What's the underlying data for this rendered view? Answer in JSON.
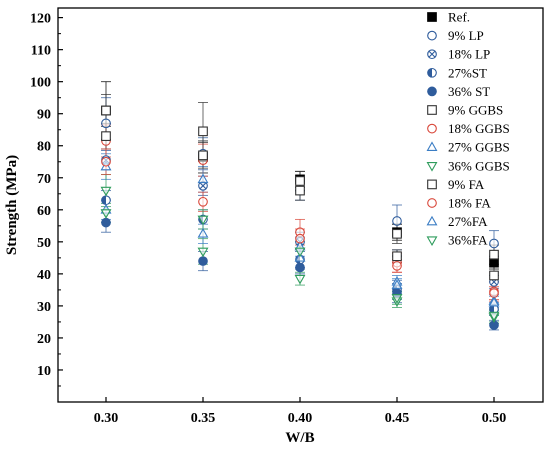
{
  "chart_data": {
    "type": "scatter",
    "xlabel": "W/B",
    "ylabel": "Strength (MPa)",
    "x_categories": [
      "0.30",
      "0.35",
      "0.40",
      "0.45",
      "0.50"
    ],
    "yticks": [
      "10",
      "20",
      "30",
      "40",
      "50",
      "60",
      "70",
      "80",
      "90",
      "100",
      "110",
      "120"
    ],
    "ylim": [
      0,
      123
    ],
    "grid": false,
    "legend_position": "top-right",
    "error_bars": true,
    "series": [
      {
        "name": "Ref.",
        "marker": "square-filled",
        "color": "#000000",
        "values": [
          91,
          76.5,
          69.5,
          53,
          43.5
        ],
        "errors": [
          9,
          5,
          2.5,
          2.5,
          2
        ]
      },
      {
        "name": "9% LP",
        "marker": "circle-open",
        "color": "#2f5c9c",
        "values": [
          87,
          77.5,
          66,
          56.5,
          49.5
        ],
        "errors": [
          8,
          5,
          3,
          5,
          4
        ]
      },
      {
        "name": "18% LP",
        "marker": "circle-x",
        "color": "#2f5c9c",
        "values": [
          75.5,
          67.5,
          50,
          45.5,
          37.5
        ],
        "errors": [
          3,
          3,
          3,
          2,
          2
        ]
      },
      {
        "name": "27%ST",
        "marker": "circle-half",
        "color": "#2f5c9c",
        "values": [
          63,
          57,
          44.5,
          35,
          29
        ],
        "errors": [
          3,
          3,
          3,
          3,
          2
        ]
      },
      {
        "name": "36% ST",
        "marker": "circle-filled",
        "color": "#2f5c9c",
        "values": [
          56,
          44,
          42,
          34,
          24
        ],
        "errors": [
          3,
          3,
          2,
          3,
          1.5
        ]
      },
      {
        "name": "9% GGBS",
        "marker": "square-open",
        "color": "#333333",
        "values": [
          91,
          84.5,
          69,
          52.5,
          46
        ],
        "errors": [
          5,
          9,
          3,
          3,
          3
        ]
      },
      {
        "name": "18% GGBS",
        "marker": "circle-open",
        "color": "#d9473a",
        "values": [
          81.5,
          75.5,
          53,
          43.5,
          34.5
        ],
        "errors": [
          5,
          5,
          4,
          3,
          3
        ]
      },
      {
        "name": "27% GGBS",
        "marker": "triangle-up",
        "color": "#3b7dc4",
        "values": [
          73.5,
          69.5,
          48.5,
          37.5,
          31.5
        ],
        "errors": [
          4,
          4,
          3,
          2,
          2
        ]
      },
      {
        "name": "36% GGBS",
        "marker": "triangle-down",
        "color": "#2e9c5c",
        "values": [
          66,
          47,
          38.5,
          31.5,
          26.5
        ],
        "errors": [
          5,
          4,
          2,
          2,
          2
        ]
      },
      {
        "name": "9% FA",
        "marker": "square-open",
        "color": "#333333",
        "values": [
          83,
          77,
          66,
          45.5,
          39.5
        ],
        "errors": [
          4,
          4,
          3,
          2,
          2
        ]
      },
      {
        "name": "18% FA",
        "marker": "circle-open",
        "color": "#d9473a",
        "values": [
          75,
          62.5,
          51,
          42.5,
          34
        ],
        "errors": [
          4,
          3,
          3,
          2,
          2
        ]
      },
      {
        "name": "27%FA",
        "marker": "triangle-up",
        "color": "#3b7dc4",
        "values": [
          60,
          52.5,
          45,
          36.5,
          31
        ],
        "errors": [
          3,
          3,
          3,
          2,
          2
        ]
      },
      {
        "name": "36%FA",
        "marker": "triangle-down",
        "color": "#2e9c5c",
        "values": [
          59,
          57,
          47,
          32.5,
          27
        ],
        "errors": [
          3,
          3,
          3,
          2,
          2
        ]
      }
    ]
  }
}
